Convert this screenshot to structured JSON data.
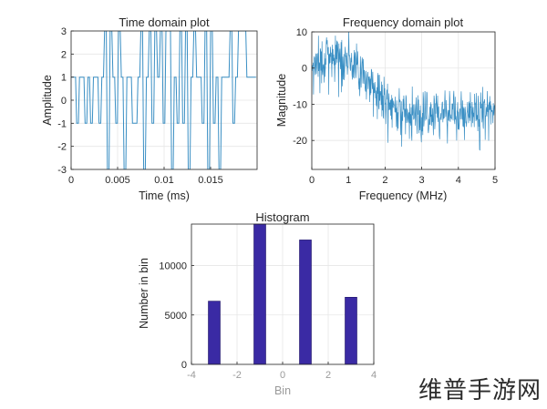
{
  "watermark": "维普手游网",
  "chart_data": [
    {
      "type": "line",
      "title": "Time domain plot",
      "xlabel": "Time (ms)",
      "ylabel": "Amplitude",
      "xlim": [
        0,
        0.02
      ],
      "ylim": [
        -3,
        3
      ],
      "xticks": [
        0,
        0.005,
        0.01,
        0.015
      ],
      "xtick_labels": [
        "0",
        "0.005",
        "0.01",
        "0.015"
      ],
      "yticks": [
        -3,
        -2,
        -1,
        0,
        1,
        2,
        3
      ],
      "ytick_labels": [
        "-3",
        "-2",
        "-1",
        "0",
        "1",
        "2",
        "3"
      ],
      "grid": true,
      "color": "#3a8fc4",
      "series": [
        {
          "x": [
            0,
            0.0003,
            0.0006,
            0.0009,
            0.0012,
            0.0015,
            0.0018,
            0.0021,
            0.0024,
            0.0027,
            0.003,
            0.0033,
            0.0036,
            0.0039,
            0.0042,
            0.0045,
            0.0048,
            0.0051,
            0.0054,
            0.0057,
            0.006,
            0.0063,
            0.0066,
            0.0069,
            0.0072,
            0.0075,
            0.0078,
            0.0081,
            0.0084,
            0.0087,
            0.009,
            0.0093,
            0.0096,
            0.0099,
            0.0102,
            0.0105,
            0.0108,
            0.0111,
            0.0114,
            0.0117,
            0.012,
            0.0123,
            0.0126,
            0.0129,
            0.0132,
            0.0135,
            0.0138,
            0.0141,
            0.0144,
            0.0147,
            0.015,
            0.0153,
            0.0156,
            0.0159,
            0.0162,
            0.0165,
            0.0168,
            0.0171,
            0.0174,
            0.0177,
            0.018,
            0.0183,
            0.0186,
            0.0189,
            0.0192,
            0.0195,
            0.0198
          ],
          "y": [
            1,
            1,
            -1,
            1,
            1,
            -1,
            1,
            -1,
            1,
            1,
            -1,
            1,
            3,
            -3,
            3,
            1,
            -1,
            3,
            1,
            -3,
            1,
            1,
            -1,
            -1,
            1,
            3,
            -3,
            1,
            3,
            -1,
            3,
            1,
            3,
            -1,
            3,
            3,
            -3,
            1,
            -1,
            3,
            -1,
            3,
            -3,
            1,
            3,
            1,
            1,
            -1,
            3,
            -3,
            3,
            -1,
            1,
            -3,
            1,
            1,
            1,
            3,
            -1,
            1,
            3,
            3,
            3,
            1,
            1,
            1,
            1
          ]
        }
      ]
    },
    {
      "type": "line",
      "title": "Frequency domain plot",
      "xlabel": "Frequency (MHz)",
      "ylabel": "Magnitude",
      "xlim": [
        0,
        5
      ],
      "ylim": [
        -28,
        10
      ],
      "xticks": [
        0,
        1,
        2,
        3,
        4,
        5
      ],
      "xtick_labels": [
        "0",
        "1",
        "2",
        "3",
        "4",
        "5"
      ],
      "yticks": [
        -20,
        -10,
        0,
        10
      ],
      "ytick_labels": [
        "-20",
        "-10",
        "0",
        "10"
      ],
      "grid": true,
      "color": "#3a8fc4",
      "series": [
        {
          "x": [
            0,
            0.25,
            0.5,
            0.75,
            1,
            1.25,
            1.5,
            1.75,
            2,
            2.25,
            2.5,
            2.75,
            3,
            3.25,
            3.5,
            3.75,
            4,
            4.25,
            4.5,
            4.75,
            5
          ],
          "y": [
            2,
            3,
            4,
            4,
            3,
            0,
            -3,
            -6,
            -9,
            -11,
            -12,
            -12,
            -12,
            -12,
            -12,
            -12,
            -12,
            -12,
            -12,
            -12,
            -12
          ],
          "noise": 3
        }
      ]
    },
    {
      "type": "bar",
      "title": "Histogram",
      "xlabel": "Bin",
      "ylabel": "Number in bin",
      "x": [
        -3,
        -1,
        1,
        3
      ],
      "values": [
        6400,
        14200,
        12600,
        6800
      ],
      "bar_width": 1,
      "xlim": [
        -4,
        4
      ],
      "ylim": [
        0,
        14200
      ],
      "xticks": [
        -4,
        -2,
        0,
        2,
        4
      ],
      "xtick_labels": [
        "-4",
        "-2",
        "0",
        "2",
        "4"
      ],
      "yticks": [
        0,
        5000,
        10000
      ],
      "ytick_labels": [
        "0",
        "5000",
        "10000"
      ],
      "grid": true,
      "color": "#3a2aa4"
    }
  ]
}
